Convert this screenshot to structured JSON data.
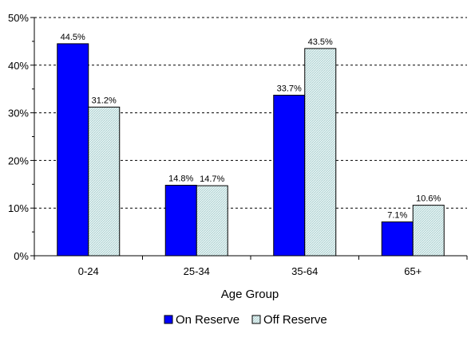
{
  "chart_data": {
    "type": "bar",
    "title": "",
    "xlabel": "Age Group",
    "ylabel": "",
    "categories": [
      "0-24",
      "25-34",
      "35-64",
      "65+"
    ],
    "ylim": [
      0,
      50
    ],
    "yticks": [
      0,
      10,
      20,
      30,
      40,
      50
    ],
    "ytick_labels": [
      "0%",
      "10%",
      "20%",
      "30%",
      "40%",
      "50%"
    ],
    "grid": "horizontal dashed",
    "legend_position": "bottom",
    "series": [
      {
        "name": "On Reserve",
        "values": [
          44.5,
          14.8,
          33.7,
          7.1
        ],
        "labels": [
          "44.5%",
          "14.8%",
          "33.7%",
          "7.1%"
        ],
        "color": "#0000ff"
      },
      {
        "name": "Off Reserve",
        "values": [
          31.2,
          14.7,
          43.5,
          10.6
        ],
        "labels": [
          "31.2%",
          "14.7%",
          "43.5%",
          "10.6%"
        ],
        "color": "#ccecec"
      }
    ]
  }
}
